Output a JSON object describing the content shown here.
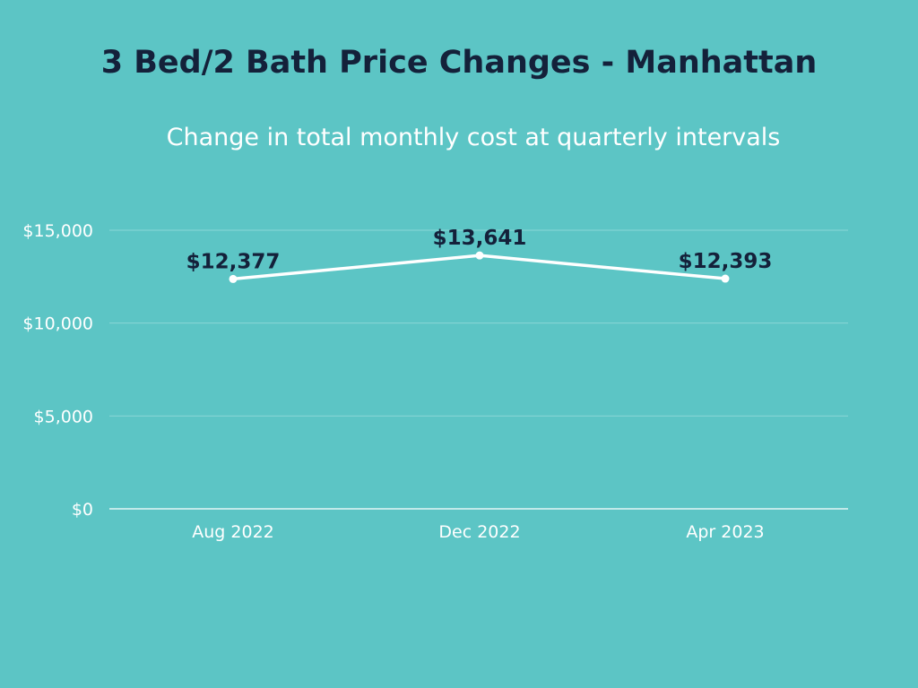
{
  "chart_data": {
    "type": "line",
    "title": "3 Bed/2 Bath Price Changes - Manhattan",
    "subtitle": "Change in total monthly cost at quarterly intervals",
    "categories": [
      "Aug 2022",
      "Dec 2022",
      "Apr 2023"
    ],
    "series": [
      {
        "name": "Total monthly cost",
        "values": [
          12377,
          13641,
          12393
        ],
        "labels": [
          "$12,377",
          "$13,641",
          "$12,393"
        ]
      }
    ],
    "yticks": [
      0,
      5000,
      10000,
      15000
    ],
    "ytick_labels": [
      "$0",
      "$5,000",
      "$10,000",
      "$15,000"
    ],
    "ylim": [
      0,
      15000
    ],
    "xlabel": "",
    "ylabel": "",
    "grid": true,
    "legend": "none"
  },
  "colors": {
    "background": "#5cc5c5",
    "title": "#14213a",
    "line": "#ffffff",
    "grid": "#8ad6d6"
  }
}
